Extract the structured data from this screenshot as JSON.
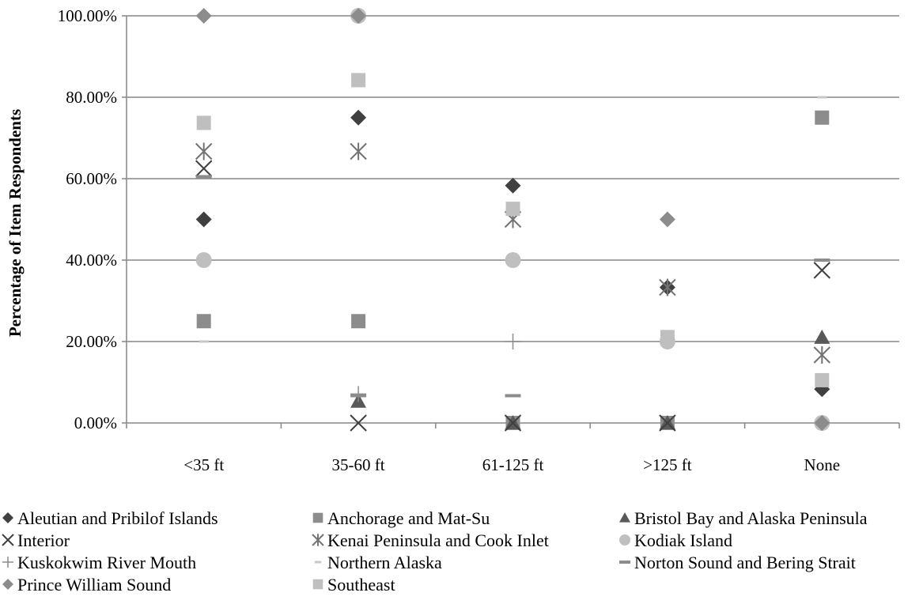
{
  "chart_data": {
    "type": "scatter",
    "categories": [
      "<35 ft",
      "35-60 ft",
      "61-125 ft",
      ">125 ft",
      "None"
    ],
    "ylabel": "Percentage of Item Respondents",
    "ylim": [
      0,
      100
    ],
    "yticks": [
      "0.00%",
      "20.00%",
      "40.00%",
      "60.00%",
      "80.00%",
      "100.00%"
    ],
    "grid": true,
    "legend_position": "bottom",
    "series": [
      {
        "name": "Aleutian and Pribilof Islands",
        "marker": "diamond",
        "color": "#404040",
        "values": [
          50,
          75,
          58.3,
          33.3,
          8.3
        ]
      },
      {
        "name": "Anchorage and Mat-Su",
        "marker": "square",
        "color": "#8c8c8c",
        "values": [
          25,
          25,
          0,
          0,
          75
        ]
      },
      {
        "name": "Bristol Bay and Alaska Peninsula",
        "marker": "triangle",
        "color": "#595959",
        "values": [
          null,
          5.3,
          0,
          0,
          21
        ]
      },
      {
        "name": "Interior",
        "marker": "x",
        "color": "#404040",
        "values": [
          62.5,
          0,
          0,
          0,
          37.5
        ]
      },
      {
        "name": "Kenai Peninsula and Cook Inlet",
        "marker": "star",
        "color": "#737373",
        "values": [
          66.7,
          66.7,
          50,
          33.3,
          16.7
        ]
      },
      {
        "name": "Kodiak Island",
        "marker": "circle",
        "color": "#bfbfbf",
        "values": [
          40,
          100,
          40,
          20,
          0
        ]
      },
      {
        "name": "Kuskokwim River Mouth",
        "marker": "plus",
        "color": "#8c8c8c",
        "values": [
          null,
          7.1,
          20,
          null,
          null
        ]
      },
      {
        "name": "Northern Alaska",
        "marker": "dash",
        "color": "#c8c8c8",
        "values": [
          20,
          null,
          null,
          null,
          80
        ]
      },
      {
        "name": "Norton Sound and Bering Strait",
        "marker": "longdash",
        "color": "#8c8c8c",
        "values": [
          60.5,
          6.7,
          6.7,
          null,
          40
        ]
      },
      {
        "name": "Prince William Sound",
        "marker": "diamond",
        "color": "#8c8c8c",
        "values": [
          100,
          100,
          null,
          50,
          0
        ]
      },
      {
        "name": "Southeast",
        "marker": "square",
        "color": "#bfbfbf",
        "values": [
          73.7,
          84.2,
          52.6,
          21.1,
          10.5
        ]
      }
    ]
  }
}
